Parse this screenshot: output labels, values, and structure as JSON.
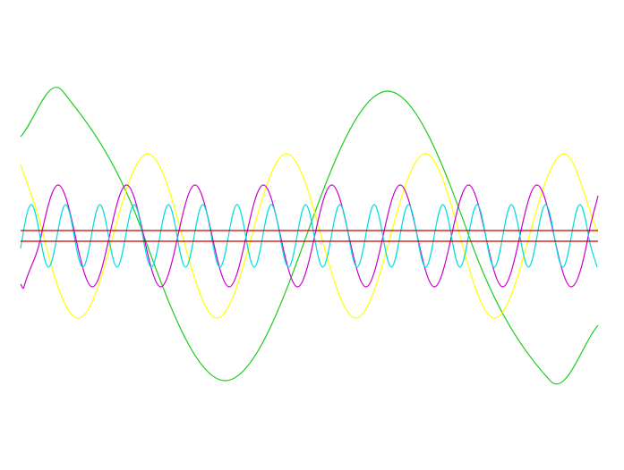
{
  "chart_data": {
    "type": "line",
    "xlim": [
      0,
      645
    ],
    "ylim": [
      -262,
      264
    ],
    "series": [
      {
        "color": "#22cc22",
        "x": [
          0,
          47,
          137.75,
          228.5,
          319.25,
          410,
          500.75,
          591.5,
          645
        ],
        "values": [
          111,
          162,
          0,
          -162,
          0,
          162,
          0,
          -162,
          -100
        ]
      },
      {
        "color": "#ffff00",
        "x": [
          0,
          25.75,
          64.5,
          103.25,
          142,
          180.75,
          219.5,
          258.25,
          297,
          335.75,
          374.5,
          413.25,
          452,
          490.75,
          529.5,
          568.25,
          607,
          645
        ],
        "values": [
          80,
          0,
          -92,
          0,
          92,
          0,
          -92,
          0,
          92,
          0,
          -92,
          0,
          92,
          0,
          -92,
          0,
          92,
          3
        ]
      },
      {
        "color": "#cc00cc",
        "x": [
          0,
          3.8,
          22.9,
          42,
          61.1,
          80.2,
          99.3,
          118.4,
          137.5,
          156.6,
          175.7,
          194.8,
          213.9,
          233,
          252.1,
          271.2,
          290.3,
          309.4,
          328.5,
          347.6,
          366.7,
          385.8,
          404.9,
          424,
          443.1,
          462.2,
          481.3,
          500.4,
          519.5,
          538.6,
          557.7,
          576.8,
          595.9,
          615,
          634.1,
          645
        ],
        "values": [
          -54,
          -57,
          0,
          57,
          0,
          -57,
          0,
          57,
          0,
          -57,
          0,
          57,
          0,
          -57,
          0,
          57,
          0,
          -57,
          0,
          57,
          0,
          -57,
          0,
          57,
          0,
          -57,
          0,
          57,
          0,
          -57,
          0,
          57,
          0,
          -57,
          0,
          45
        ]
      },
      {
        "color": "#00dddd",
        "x": [
          0,
          2.425,
          12,
          21.575,
          31.15,
          40.725,
          50.3,
          59.875,
          69.45,
          79.025,
          88.6,
          98.175,
          107.75,
          117.325,
          126.9,
          136.475,
          146.05,
          155.625,
          165.2,
          174.775,
          184.35,
          193.925,
          203.5,
          213.075,
          222.65,
          232.225,
          241.8,
          251.375,
          260.95,
          270.525,
          280.1,
          289.675,
          299.25,
          308.825,
          318.4,
          327.975,
          337.55,
          347.125,
          356.7,
          366.275,
          375.85,
          385.425,
          395,
          404.575,
          414.15,
          423.725,
          433.3,
          442.875,
          452.45,
          462.025,
          471.6,
          481.175,
          490.75,
          500.325,
          509.9,
          519.475,
          529.05,
          538.625,
          548.2,
          557.775,
          567.35,
          576.925,
          586.5,
          596.075,
          605.65,
          615.225,
          624.8,
          634.375,
          643.95
        ],
        "values": [
          -14,
          0,
          35,
          0,
          -35,
          0,
          35,
          0,
          -35,
          0,
          35,
          0,
          -35,
          0,
          35,
          0,
          -35,
          0,
          35,
          0,
          -35,
          0,
          35,
          0,
          -35,
          0,
          35,
          0,
          -35,
          0,
          35,
          0,
          -35,
          0,
          35,
          0,
          -35,
          0,
          35,
          0,
          -35,
          0,
          35,
          0,
          -35,
          0,
          35,
          0,
          -35,
          0,
          35,
          0,
          -35,
          0,
          35,
          0,
          -35,
          0,
          35,
          0,
          -35,
          0,
          35,
          0,
          -35,
          0,
          35,
          0,
          -35
        ]
      },
      {
        "color": "#cc0000",
        "x": [
          0,
          645
        ],
        "values": [
          6,
          6
        ]
      },
      {
        "color": "#cc0000",
        "x": [
          0,
          645
        ],
        "values": [
          -6,
          -6
        ]
      }
    ]
  }
}
